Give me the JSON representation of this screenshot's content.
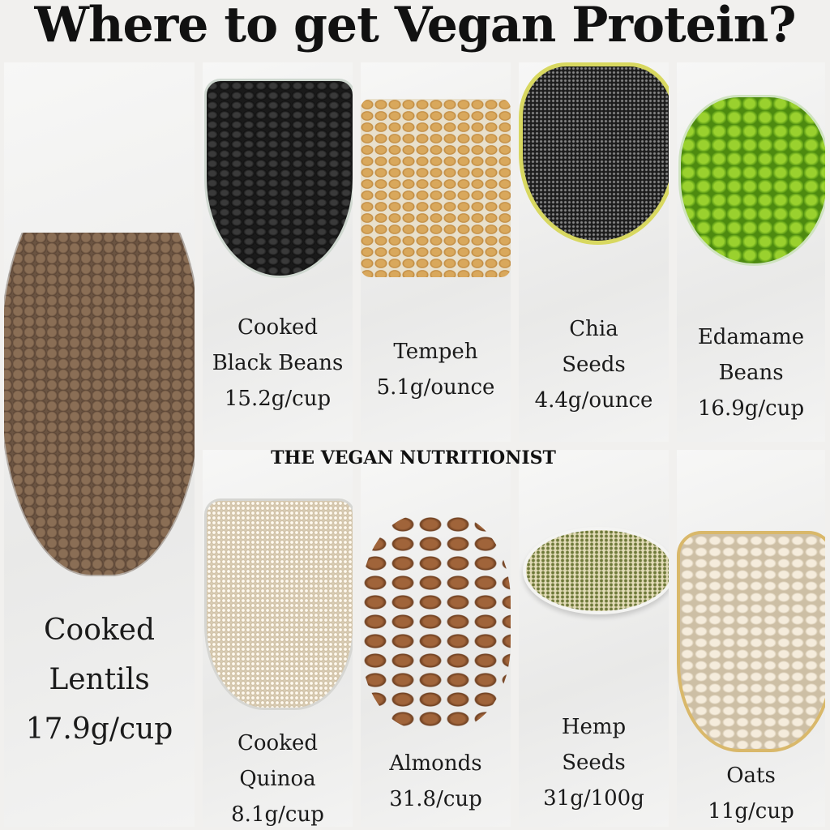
{
  "title": "Where to get Vegan Protein?",
  "brand": "THE VEGAN NUTRITIONIST",
  "foods": [
    {
      "lines": [
        "Cooked",
        "Lentils",
        "17.9g/cup"
      ],
      "icon": "lentils-image"
    },
    {
      "lines": [
        "Cooked",
        "Black Beans",
        "15.2g/cup"
      ],
      "icon": "black-beans-image"
    },
    {
      "lines": [
        "Tempeh",
        "5.1g/ounce"
      ],
      "icon": "tempeh-image"
    },
    {
      "lines": [
        "Chia",
        "Seeds",
        "4.4g/ounce"
      ],
      "icon": "chia-seeds-image"
    },
    {
      "lines": [
        "Edamame",
        "Beans",
        "16.9g/cup"
      ],
      "icon": "edamame-image"
    },
    {
      "lines": [
        "Cooked",
        "Quinoa",
        "8.1g/cup"
      ],
      "icon": "quinoa-image"
    },
    {
      "lines": [
        "Almonds",
        "31.8/cup"
      ],
      "icon": "almonds-image"
    },
    {
      "lines": [
        "Hemp",
        "Seeds",
        "31g/100g"
      ],
      "icon": "hemp-seeds-image"
    },
    {
      "lines": [
        "Oats",
        "11g/cup"
      ],
      "icon": "oats-image"
    }
  ]
}
